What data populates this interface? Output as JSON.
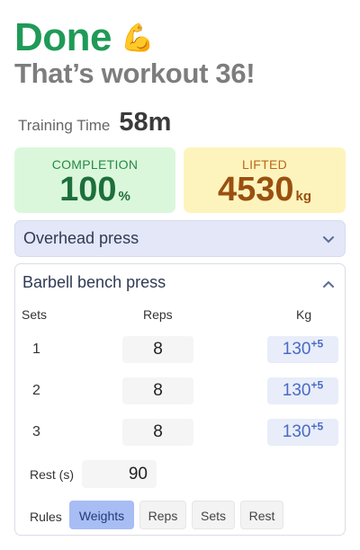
{
  "header": {
    "title": "Done",
    "emoji": "💪",
    "subtitle": "That’s workout 36!"
  },
  "training_time": {
    "label": "Training Time",
    "value": "58m"
  },
  "stats": {
    "completion": {
      "caption": "COMPLETION",
      "value": "100",
      "unit": "%"
    },
    "lifted": {
      "caption": "LIFTED",
      "value": "4530",
      "unit": "kg"
    }
  },
  "exercises": {
    "collapsed_name": "Overhead press",
    "expanded_name": "Barbell bench press",
    "columns": {
      "sets": "Sets",
      "reps": "Reps",
      "kg": "Kg"
    },
    "rows": [
      {
        "set": "1",
        "reps": "8",
        "kg": "130",
        "inc": "+5"
      },
      {
        "set": "2",
        "reps": "8",
        "kg": "130",
        "inc": "+5"
      },
      {
        "set": "3",
        "reps": "8",
        "kg": "130",
        "inc": "+5"
      }
    ],
    "rest_label": "Rest (s)",
    "rest_value": "90",
    "rules_label": "Rules",
    "rules": [
      "Weights",
      "Reps",
      "Sets",
      "Rest"
    ],
    "active_rule": "Weights"
  },
  "colors": {
    "accent_green": "#1f9a57",
    "completion_bg": "#dbf7db",
    "lifted_bg": "#fdf4bd",
    "exercise_bg": "#e3e7f7",
    "active_rule_bg": "#a8bdf4"
  }
}
